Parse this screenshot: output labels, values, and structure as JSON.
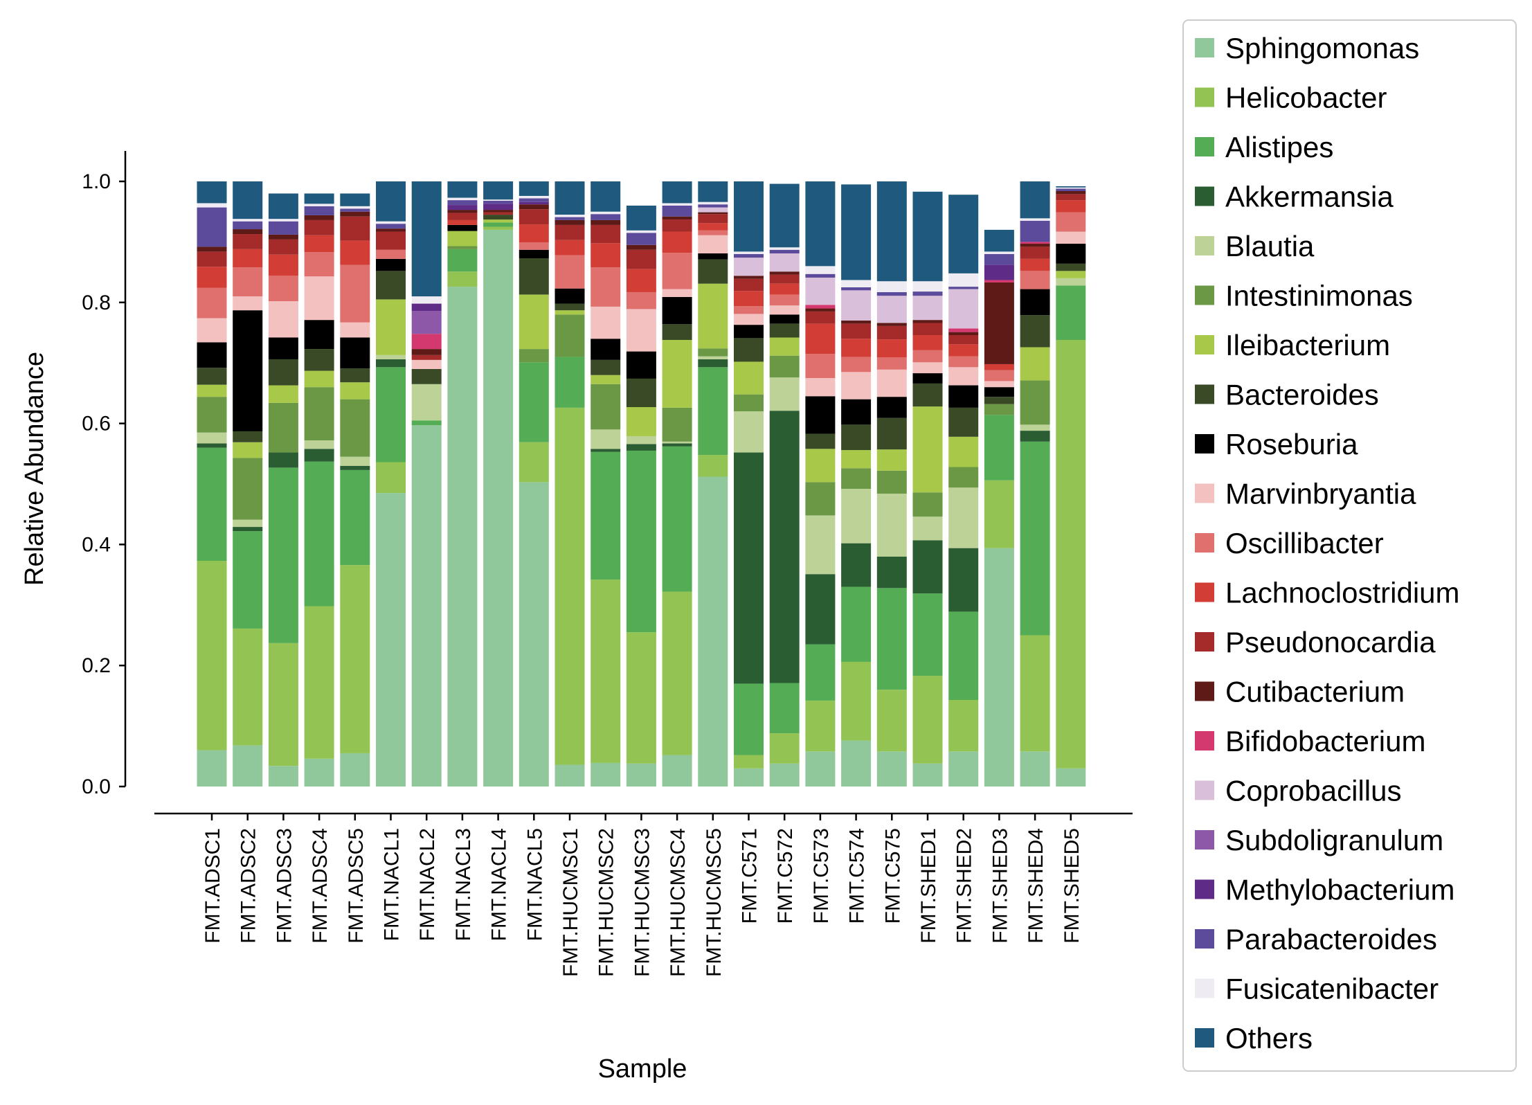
{
  "chart_data": {
    "type": "bar",
    "stacked": true,
    "xlabel": "Sample",
    "ylabel": "Relative Abundance",
    "ylim": [
      0,
      1.05
    ],
    "yticks": [
      "0.0",
      "0.2",
      "0.4",
      "0.6",
      "0.8",
      "1.0"
    ],
    "grid": false,
    "legend_position": "right",
    "categories": [
      "FMT.ADSC1",
      "FMT.ADSC2",
      "FMT.ADSC3",
      "FMT.ADSC4",
      "FMT.ADSC5",
      "FMT.NACL1",
      "FMT.NACL2",
      "FMT.NACL3",
      "FMT.NACL4",
      "FMT.NACL5",
      "FMT.HUCMSC1",
      "FMT.HUCMSC2",
      "FMT.HUCMSC3",
      "FMT.HUCMSC4",
      "FMT.HUCMSC5",
      "FMT.C571",
      "FMT.C572",
      "FMT.C573",
      "FMT.C574",
      "FMT.C575",
      "FMT.SHED1",
      "FMT.SHED2",
      "FMT.SHED3",
      "FMT.SHED4",
      "FMT.SHED5"
    ],
    "series": [
      {
        "name": "Sphingomonas",
        "color": "#90c89c",
        "values": [
          0.06,
          0.068,
          0.034,
          0.046,
          0.055,
          0.485,
          0.597,
          0.826,
          0.92,
          0.503,
          0.036,
          0.039,
          0.038,
          0.052,
          0.512,
          0.03,
          0.038,
          0.058,
          0.076,
          0.058,
          0.038,
          0.058,
          0.394,
          0.058,
          0.03
        ]
      },
      {
        "name": "Helicobacter",
        "color": "#92c353",
        "values": [
          0.313,
          0.193,
          0.203,
          0.252,
          0.311,
          0.051,
          0.0,
          0.025,
          0.005,
          0.066,
          0.59,
          0.303,
          0.217,
          0.27,
          0.036,
          0.022,
          0.05,
          0.084,
          0.13,
          0.102,
          0.145,
          0.085,
          0.112,
          0.192,
          0.708
        ]
      },
      {
        "name": "Alistipes",
        "color": "#54ad54",
        "values": [
          0.187,
          0.161,
          0.29,
          0.239,
          0.157,
          0.157,
          0.008,
          0.037,
          0.007,
          0.132,
          0.084,
          0.211,
          0.3,
          0.24,
          0.145,
          0.118,
          0.083,
          0.093,
          0.124,
          0.168,
          0.136,
          0.146,
          0.108,
          0.32,
          0.09
        ]
      },
      {
        "name": "Akkermansia",
        "color": "#2b5d33",
        "values": [
          0.007,
          0.007,
          0.025,
          0.021,
          0.007,
          0.013,
          0.0,
          0.0,
          0.0,
          0.0,
          0.0,
          0.005,
          0.011,
          0.005,
          0.013,
          0.382,
          0.45,
          0.116,
          0.072,
          0.052,
          0.088,
          0.105,
          0.0,
          0.018,
          0.0
        ]
      },
      {
        "name": "Blautia",
        "color": "#bdd297",
        "values": [
          0.018,
          0.012,
          0.0,
          0.014,
          0.015,
          0.007,
          0.06,
          0.0,
          0.0,
          0.0,
          0.0,
          0.032,
          0.013,
          0.003,
          0.005,
          0.068,
          0.055,
          0.097,
          0.09,
          0.104,
          0.039,
          0.1,
          0.0,
          0.01,
          0.012
        ]
      },
      {
        "name": "Intestinimonas",
        "color": "#6a9845",
        "values": [
          0.059,
          0.102,
          0.082,
          0.088,
          0.095,
          0.0,
          0.0,
          0.005,
          0.0,
          0.022,
          0.07,
          0.075,
          0.0,
          0.056,
          0.013,
          0.028,
          0.036,
          0.055,
          0.034,
          0.038,
          0.04,
          0.034,
          0.018,
          0.073,
          0.0
        ]
      },
      {
        "name": "Ileibacterium",
        "color": "#a8c84a",
        "values": [
          0.02,
          0.026,
          0.029,
          0.027,
          0.028,
          0.092,
          0.0,
          0.025,
          0.005,
          0.09,
          0.007,
          0.015,
          0.048,
          0.112,
          0.107,
          0.054,
          0.03,
          0.055,
          0.03,
          0.035,
          0.142,
          0.05,
          0.0,
          0.055,
          0.012
        ]
      },
      {
        "name": "Bacteroides",
        "color": "#3a4a27",
        "values": [
          0.028,
          0.018,
          0.043,
          0.036,
          0.023,
          0.047,
          0.025,
          0.0,
          0.008,
          0.06,
          0.011,
          0.025,
          0.047,
          0.026,
          0.04,
          0.039,
          0.023,
          0.025,
          0.042,
          0.052,
          0.038,
          0.048,
          0.012,
          0.053,
          0.012
        ]
      },
      {
        "name": "Roseburia",
        "color": "#000000",
        "values": [
          0.042,
          0.2,
          0.036,
          0.048,
          0.051,
          0.02,
          0.0,
          0.01,
          0.0,
          0.014,
          0.025,
          0.035,
          0.045,
          0.045,
          0.01,
          0.022,
          0.015,
          0.062,
          0.042,
          0.035,
          0.017,
          0.037,
          0.016,
          0.043,
          0.033
        ]
      },
      {
        "name": "Marvinbryantia",
        "color": "#f2c1c0",
        "values": [
          0.04,
          0.023,
          0.06,
          0.072,
          0.025,
          0.0,
          0.015,
          0.0,
          0.0,
          0.0,
          0.0,
          0.053,
          0.07,
          0.013,
          0.03,
          0.018,
          0.015,
          0.03,
          0.045,
          0.045,
          0.018,
          0.03,
          0.01,
          0.0,
          0.02
        ]
      },
      {
        "name": "Oscillibacter",
        "color": "#e0706e",
        "values": [
          0.05,
          0.048,
          0.042,
          0.04,
          0.095,
          0.015,
          0.0,
          0.0,
          0.0,
          0.012,
          0.055,
          0.065,
          0.028,
          0.06,
          0.008,
          0.013,
          0.018,
          0.04,
          0.025,
          0.02,
          0.02,
          0.018,
          0.018,
          0.03,
          0.032
        ]
      },
      {
        "name": "Lachnoclostridium",
        "color": "#d23e35",
        "values": [
          0.035,
          0.03,
          0.035,
          0.028,
          0.04,
          0.0,
          0.0,
          0.008,
          0.0,
          0.03,
          0.025,
          0.04,
          0.038,
          0.035,
          0.012,
          0.025,
          0.018,
          0.05,
          0.03,
          0.03,
          0.025,
          0.02,
          0.01,
          0.02,
          0.02
        ]
      },
      {
        "name": "Pseudonocardia",
        "color": "#a52b2b",
        "values": [
          0.025,
          0.025,
          0.025,
          0.025,
          0.04,
          0.03,
          0.008,
          0.012,
          0.004,
          0.025,
          0.025,
          0.03,
          0.032,
          0.02,
          0.015,
          0.02,
          0.015,
          0.02,
          0.025,
          0.022,
          0.02,
          0.015,
          0.0,
          0.02,
          0.01
        ]
      },
      {
        "name": "Cutibacterium",
        "color": "#5e1a17",
        "values": [
          0.008,
          0.008,
          0.008,
          0.008,
          0.008,
          0.005,
          0.01,
          0.005,
          0.004,
          0.008,
          0.008,
          0.008,
          0.008,
          0.005,
          0.003,
          0.005,
          0.005,
          0.005,
          0.005,
          0.005,
          0.005,
          0.005,
          0.135,
          0.005,
          0.005
        ]
      },
      {
        "name": "Bifidobacterium",
        "color": "#d3386e",
        "values": [
          0.0,
          0.0,
          0.0,
          0.0,
          0.0,
          0.0,
          0.025,
          0.0,
          0.0,
          0.0,
          0.0,
          0.0,
          0.0,
          0.0,
          0.0,
          0.0,
          0.0,
          0.006,
          0.0,
          0.0,
          0.0,
          0.006,
          0.004,
          0.003,
          0.0
        ]
      },
      {
        "name": "Coprobacillus",
        "color": "#d9bfda",
        "values": [
          0.0,
          0.0,
          0.0,
          0.0,
          0.0,
          0.0,
          0.0,
          0.0,
          0.0,
          0.0,
          0.0,
          0.0,
          0.0,
          0.0,
          0.008,
          0.03,
          0.03,
          0.045,
          0.05,
          0.045,
          0.04,
          0.065,
          0.0,
          0.0,
          0.0
        ]
      },
      {
        "name": "Subdoligranulum",
        "color": "#8c58a7",
        "values": [
          0.0,
          0.0,
          0.0,
          0.0,
          0.0,
          0.0,
          0.038,
          0.0,
          0.0,
          0.0,
          0.0,
          0.0,
          0.0,
          0.0,
          0.0,
          0.0,
          0.0,
          0.0,
          0.0,
          0.0,
          0.0,
          0.0,
          0.0,
          0.0,
          0.0
        ]
      },
      {
        "name": "Methylobacterium",
        "color": "#5e2b86",
        "values": [
          0.0,
          0.0,
          0.0,
          0.0,
          0.0,
          0.0,
          0.012,
          0.008,
          0.01,
          0.004,
          0.0,
          0.0,
          0.0,
          0.0,
          0.0,
          0.0,
          0.0,
          0.0,
          0.0,
          0.0,
          0.0,
          0.0,
          0.025,
          0.0,
          0.0
        ]
      },
      {
        "name": "Parabacteroides",
        "color": "#5c4a9a",
        "values": [
          0.065,
          0.013,
          0.022,
          0.015,
          0.005,
          0.008,
          0.0,
          0.008,
          0.005,
          0.006,
          0.005,
          0.01,
          0.02,
          0.018,
          0.005,
          0.006,
          0.006,
          0.006,
          0.005,
          0.006,
          0.007,
          0.004,
          0.018,
          0.035,
          0.004
        ]
      },
      {
        "name": "Fusicatenibacter",
        "color": "#efebf2",
        "values": [
          0.007,
          0.004,
          0.004,
          0.004,
          0.004,
          0.004,
          0.012,
          0.004,
          0.002,
          0.004,
          0.004,
          0.004,
          0.004,
          0.004,
          0.004,
          0.004,
          0.004,
          0.013,
          0.012,
          0.018,
          0.017,
          0.022,
          0.004,
          0.004,
          0.002
        ]
      },
      {
        "name": "Others",
        "color": "#1f5a7e",
        "values": [
          0.036,
          0.062,
          0.042,
          0.017,
          0.021,
          0.066,
          0.19,
          0.027,
          0.03,
          0.024,
          0.055,
          0.05,
          0.041,
          0.036,
          0.034,
          0.116,
          0.105,
          0.14,
          0.158,
          0.165,
          0.148,
          0.13,
          0.036,
          0.061,
          0.002
        ]
      }
    ]
  }
}
